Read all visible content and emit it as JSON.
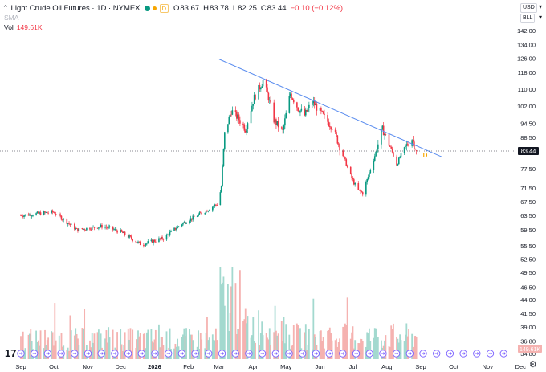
{
  "header": {
    "symbol": "Light Crude Oil Futures · 1D · NYMEX",
    "delayed_badge": "D",
    "o_label": "O",
    "o_value": "83.67",
    "h_label": "H",
    "h_value": "83.78",
    "l_label": "L",
    "l_value": "82.25",
    "c_label": "C",
    "c_value": "83.44",
    "change": "−0.10 (−0.12%)"
  },
  "indicators": {
    "sma_label": "SMA",
    "vol_label": "Vol",
    "vol_value": "149.61K"
  },
  "price_axis": {
    "currency": "USD",
    "unit": "BLL",
    "last_price": "83.44",
    "vol_last": "149.61K"
  },
  "logo": {
    "text": "17"
  },
  "colors": {
    "up": "#089981",
    "down": "#f23645",
    "vol_up": "#a3d9cf",
    "vol_down": "#f5b2b0",
    "trendline": "#5b8def",
    "event_icon": "#7b61ff",
    "delayed": "#f7a600"
  },
  "chart_data": {
    "type": "candlestick",
    "title": "Light Crude Oil Futures · 1D · NYMEX",
    "y_ticks": [
      142.0,
      134.0,
      126.0,
      118.0,
      110.0,
      102.0,
      94.5,
      88.5,
      83.0,
      77.5,
      71.5,
      67.5,
      63.5,
      59.5,
      55.5,
      52.5,
      49.5,
      46.5,
      44.0,
      41.5,
      39.0,
      36.8,
      34.8
    ],
    "x_ticks": [
      "Sep",
      "Oct",
      "Nov",
      "Dec",
      "2026",
      "Feb",
      "Mar",
      "Apr",
      "May",
      "Jun",
      "Jul",
      "Aug",
      "Sep",
      "Oct",
      "Nov",
      "Dec"
    ],
    "last_close": 83.44,
    "trendline": {
      "start": {
        "date": "2026-03-01",
        "value": 125.5
      },
      "end": {
        "date": "2026-09-20",
        "value": 81.5
      }
    },
    "anchors": [
      {
        "date": "2025-09-01",
        "value": 63.5
      },
      {
        "date": "2025-10-01",
        "value": 64.5
      },
      {
        "date": "2025-10-22",
        "value": 59.5
      },
      {
        "date": "2025-11-15",
        "value": 60.5
      },
      {
        "date": "2025-12-01",
        "value": 59.0
      },
      {
        "date": "2025-12-20",
        "value": 55.8
      },
      {
        "date": "2026-01-10",
        "value": 57.5
      },
      {
        "date": "2026-01-25",
        "value": 61.0
      },
      {
        "date": "2026-02-15",
        "value": 64.5
      },
      {
        "date": "2026-02-28",
        "value": 67.0
      },
      {
        "date": "2026-03-03",
        "value": 72.0
      },
      {
        "date": "2026-03-06",
        "value": 90.0
      },
      {
        "date": "2026-03-12",
        "value": 100.0
      },
      {
        "date": "2026-03-18",
        "value": 97.0
      },
      {
        "date": "2026-03-25",
        "value": 92.0
      },
      {
        "date": "2026-04-02",
        "value": 106.0
      },
      {
        "date": "2026-04-10",
        "value": 114.0
      },
      {
        "date": "2026-04-15",
        "value": 106.0
      },
      {
        "date": "2026-04-20",
        "value": 96.0
      },
      {
        "date": "2026-04-28",
        "value": 91.0
      },
      {
        "date": "2026-05-05",
        "value": 108.0
      },
      {
        "date": "2026-05-12",
        "value": 101.0
      },
      {
        "date": "2026-05-18",
        "value": 98.0
      },
      {
        "date": "2026-05-25",
        "value": 104.0
      },
      {
        "date": "2026-06-05",
        "value": 97.0
      },
      {
        "date": "2026-06-12",
        "value": 93.0
      },
      {
        "date": "2026-06-20",
        "value": 84.0
      },
      {
        "date": "2026-06-28",
        "value": 76.0
      },
      {
        "date": "2026-07-05",
        "value": 71.0
      },
      {
        "date": "2026-07-10",
        "value": 70.0
      },
      {
        "date": "2026-07-15",
        "value": 75.0
      },
      {
        "date": "2026-07-22",
        "value": 83.0
      },
      {
        "date": "2026-07-28",
        "value": 92.0
      },
      {
        "date": "2026-08-02",
        "value": 87.0
      },
      {
        "date": "2026-08-10",
        "value": 79.0
      },
      {
        "date": "2026-08-18",
        "value": 85.0
      },
      {
        "date": "2026-08-24",
        "value": 88.0
      },
      {
        "date": "2026-08-28",
        "value": 83.5
      }
    ],
    "volume_regimes": [
      {
        "from": "2025-09-01",
        "to": "2026-02-28",
        "level": 0.35
      },
      {
        "from": "2026-03-01",
        "to": "2026-03-20",
        "level": 1.0
      },
      {
        "from": "2026-03-21",
        "to": "2026-04-30",
        "level": 0.6
      },
      {
        "from": "2026-05-01",
        "to": "2026-08-29",
        "level": 0.4
      }
    ]
  }
}
